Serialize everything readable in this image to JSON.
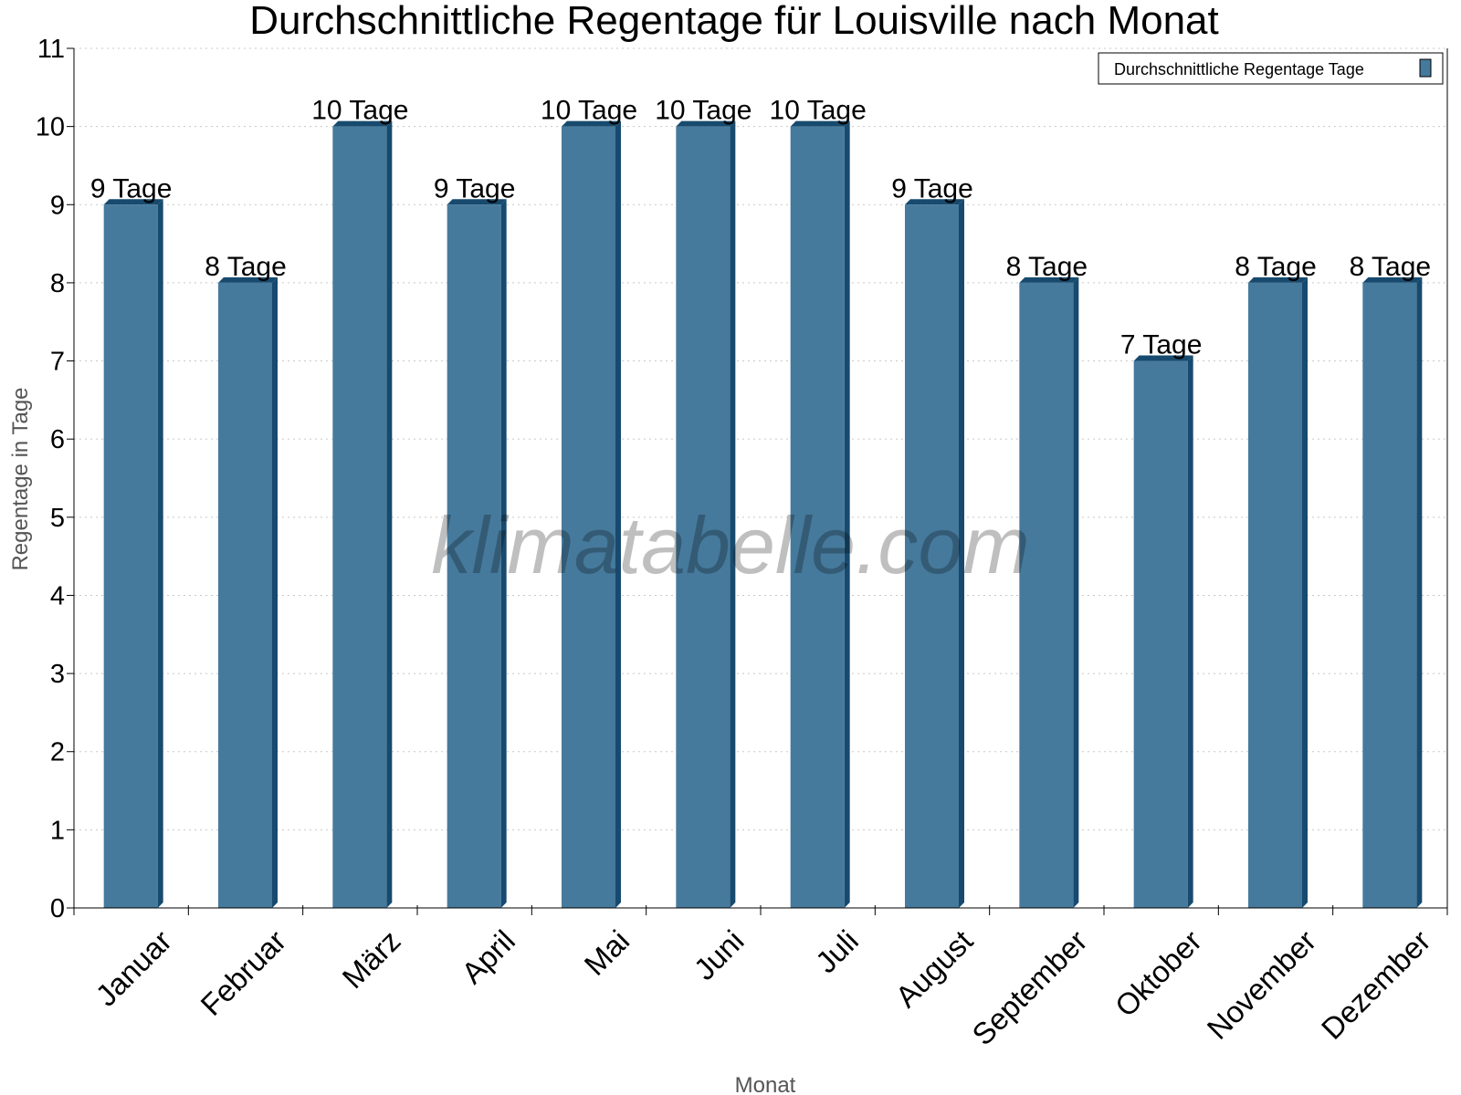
{
  "chart_data": {
    "type": "bar",
    "title": "Durchschnittliche Regentage für Louisville nach Monat",
    "xlabel": "Monat",
    "ylabel": "Regentage in Tage",
    "categories": [
      "Januar",
      "Februar",
      "März",
      "April",
      "Mai",
      "Juni",
      "Juli",
      "August",
      "September",
      "Oktober",
      "November",
      "Dezember"
    ],
    "series": [
      {
        "name": "Durchschnittliche Regentage Tage",
        "values": [
          9,
          8,
          10,
          9,
          10,
          10,
          10,
          9,
          8,
          7,
          8,
          8
        ],
        "color": "#467a9c",
        "side_color": "#174a6e"
      }
    ],
    "data_labels": [
      "9 Tage",
      "8 Tage",
      "10 Tage",
      "9 Tage",
      "10 Tage",
      "10 Tage",
      "10 Tage",
      "9 Tage",
      "8 Tage",
      "7 Tage",
      "8 Tage",
      "8 Tage"
    ],
    "ylim": [
      0,
      11
    ],
    "yticks": [
      0,
      1,
      2,
      3,
      4,
      5,
      6,
      7,
      8,
      9,
      10,
      11
    ],
    "grid": true,
    "legend_position": "top-right"
  },
  "watermark": "klimatabelle.com"
}
